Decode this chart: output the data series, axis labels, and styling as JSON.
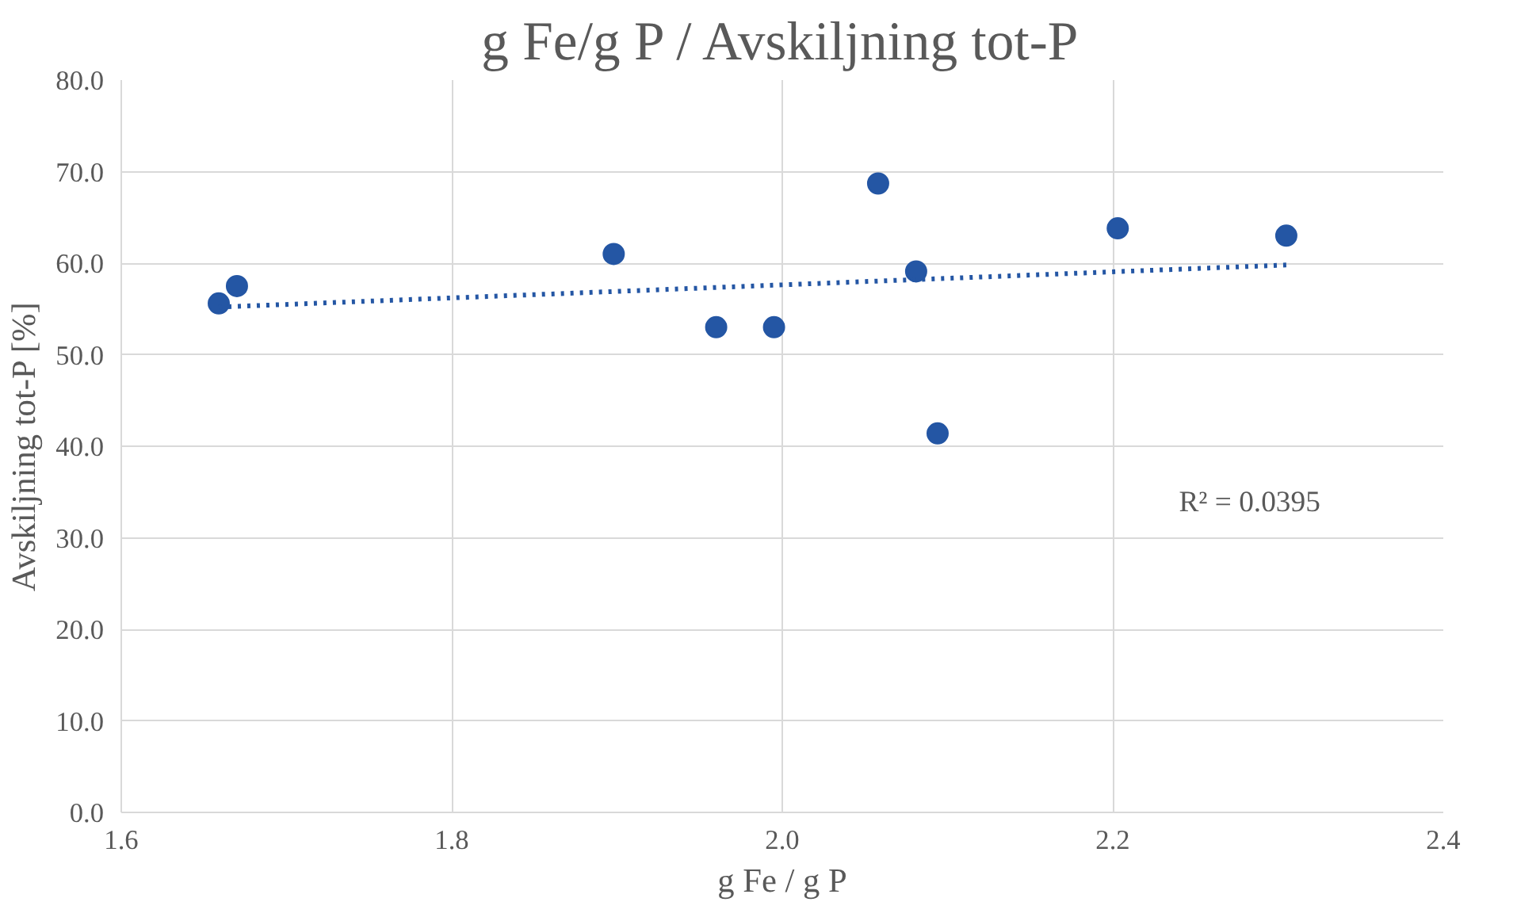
{
  "chart_data": {
    "type": "scatter",
    "title": "g Fe/g P / Avskiljning tot-P",
    "xlabel": "g Fe / g P",
    "ylabel": "Avskiljning tot-P [%]",
    "series": [
      {
        "color": "#2456a4",
        "x": [
          1.659,
          1.67,
          1.898,
          1.96,
          1.995,
          2.058,
          2.081,
          2.094,
          2.203,
          2.305
        ],
        "values": [
          55.6,
          57.5,
          61.0,
          53.0,
          53.0,
          68.7,
          59.1,
          41.4,
          63.8,
          63.0
        ],
        "marker": "circle"
      },
      {
        "type": "line",
        "color": "#2456a4",
        "x": [
          1.659,
          2.305
        ],
        "values": [
          55.2,
          59.8
        ],
        "line_style": "dotted",
        "marker": "none"
      }
    ],
    "annotations": [
      "R² = 0.0395"
    ],
    "xlim": [
      1.6,
      2.4
    ],
    "xticks": [
      {
        "value": 1.6,
        "label": "1.6"
      },
      {
        "value": 1.8,
        "label": "1.8"
      },
      {
        "value": 2.0,
        "label": "2.0"
      },
      {
        "value": 2.2,
        "label": "2.2"
      },
      {
        "value": 2.4,
        "label": "2.4"
      }
    ],
    "ylim": [
      0,
      80
    ],
    "yticks": [
      {
        "value": 0,
        "label": "0.0"
      },
      {
        "value": 10,
        "label": "10.0"
      },
      {
        "value": 20,
        "label": "20.0"
      },
      {
        "value": 30,
        "label": "30.0"
      },
      {
        "value": 40,
        "label": "40.0"
      },
      {
        "value": 50,
        "label": "50.0"
      },
      {
        "value": 60,
        "label": "60.0"
      },
      {
        "value": 70,
        "label": "70.0"
      },
      {
        "value": 80,
        "label": "80.0"
      }
    ],
    "grid": true
  }
}
